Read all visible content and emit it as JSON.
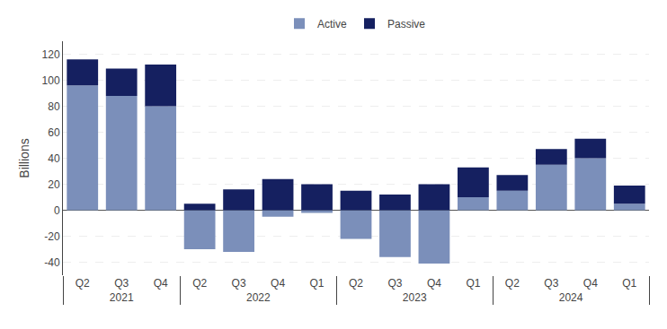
{
  "chart_data": {
    "type": "bar",
    "stacked": true,
    "categories": [
      [
        "2021",
        "Q2"
      ],
      [
        "2021",
        "Q3"
      ],
      [
        "2021",
        "Q4"
      ],
      [
        "2022",
        "Q1"
      ],
      [
        "2022",
        "Q2"
      ],
      [
        "2022",
        "Q3"
      ],
      [
        "2022",
        "Q4"
      ],
      [
        "2023",
        "Q1"
      ],
      [
        "2023",
        "Q2"
      ],
      [
        "2023",
        "Q3"
      ],
      [
        "2023",
        "Q4"
      ],
      [
        "2024",
        "Q1"
      ],
      [
        "2024",
        "Q2"
      ],
      [
        "2024",
        "Q3"
      ],
      [
        "2024",
        "Q4"
      ]
    ],
    "series": [
      {
        "name": "Active",
        "color": "#7b8fba",
        "values": [
          96,
          88,
          80,
          -2,
          -30,
          -32,
          -5,
          10,
          -22,
          -36,
          -41,
          5,
          15,
          35,
          40
        ]
      },
      {
        "name": "Passive",
        "color": "#152060",
        "values": [
          20,
          21,
          32,
          20,
          5,
          16,
          24,
          23,
          15,
          12,
          20,
          14,
          12,
          12,
          15
        ]
      }
    ],
    "ylabel": "Billions",
    "ylim": [
      -50,
      130
    ],
    "yticks": [
      -40,
      -20,
      0,
      20,
      40,
      60,
      80,
      100,
      120
    ],
    "grid": true,
    "legend": "top"
  }
}
